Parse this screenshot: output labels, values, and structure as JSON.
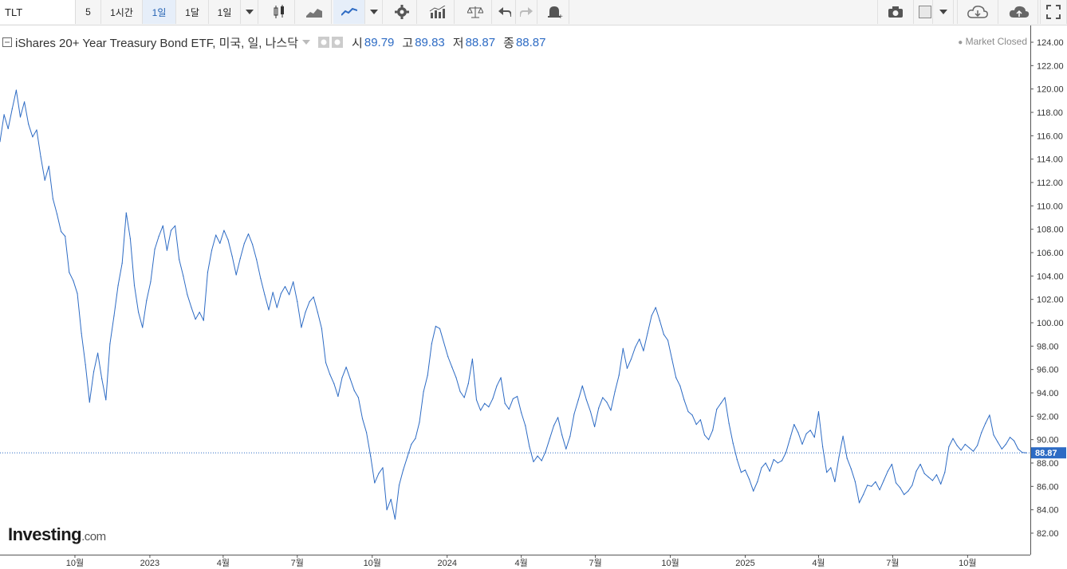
{
  "toolbar": {
    "symbol": "TLT",
    "interval_buttons": [
      "5",
      "1시간",
      "1일",
      "1달",
      "1일"
    ],
    "active_interval": "1일"
  },
  "legend": {
    "title": "iShares 20+ Year Treasury Bond ETF, 미국, 일, 나스닥",
    "open_label": "시",
    "open": "89.79",
    "high_label": "고",
    "high": "89.83",
    "low_label": "저",
    "low": "88.87",
    "close_label": "종",
    "close": "88.87"
  },
  "market_status": "Market Closed",
  "logo": {
    "main": "Investing",
    "suffix": ".com"
  },
  "colors": {
    "line": "#2d6bc4",
    "last_price_tag": "#2d6bc4",
    "grid": "none"
  },
  "chart_data": {
    "type": "line",
    "title": "iShares 20+ Year Treasury Bond ETF, 미국, 일, 나스닥",
    "xlabel": "",
    "ylabel": "",
    "ylim": [
      81,
      125
    ],
    "y_ticks": [
      "82.00",
      "84.00",
      "86.00",
      "88.00",
      "90.00",
      "92.00",
      "94.00",
      "96.00",
      "98.00",
      "100.00",
      "102.00",
      "104.00",
      "106.00",
      "108.00",
      "110.00",
      "112.00",
      "114.00",
      "116.00",
      "118.00",
      "120.00",
      "122.00",
      "124.00"
    ],
    "x_ticks": [
      "10월",
      "2023",
      "4월",
      "7월",
      "10월",
      "2024",
      "4월",
      "7월",
      "10월",
      "2025",
      "4월",
      "7월",
      "10월"
    ],
    "x_tick_dates": [
      "2022-10-01",
      "2023-01-01",
      "2023-04-01",
      "2023-07-01",
      "2023-10-01",
      "2024-01-01",
      "2024-04-01",
      "2024-07-01",
      "2024-10-01",
      "2025-01-01",
      "2025-04-01",
      "2025-07-01",
      "2025-10-01"
    ],
    "x_range": [
      "2022-07-01",
      "2025-12-17"
    ],
    "last_price": 88.87,
    "last_price_label": "88.87",
    "series": [
      {
        "points": [
          [
            "2022-07-01",
            115.5
          ],
          [
            "2022-07-06",
            117.8
          ],
          [
            "2022-07-11",
            116.6
          ],
          [
            "2022-07-16",
            118.3
          ],
          [
            "2022-07-21",
            119.9
          ],
          [
            "2022-07-26",
            117.6
          ],
          [
            "2022-07-31",
            118.9
          ],
          [
            "2022-08-05",
            117.0
          ],
          [
            "2022-08-10",
            115.9
          ],
          [
            "2022-08-15",
            116.5
          ],
          [
            "2022-08-20",
            114.2
          ],
          [
            "2022-08-25",
            112.2
          ],
          [
            "2022-08-30",
            113.4
          ],
          [
            "2022-09-04",
            110.6
          ],
          [
            "2022-09-09",
            109.3
          ],
          [
            "2022-09-14",
            107.8
          ],
          [
            "2022-09-19",
            107.4
          ],
          [
            "2022-09-24",
            104.3
          ],
          [
            "2022-09-29",
            103.6
          ],
          [
            "2022-10-04",
            102.5
          ],
          [
            "2022-10-09",
            99.1
          ],
          [
            "2022-10-14",
            96.4
          ],
          [
            "2022-10-19",
            93.2
          ],
          [
            "2022-10-24",
            95.8
          ],
          [
            "2022-10-29",
            97.4
          ],
          [
            "2022-11-03",
            95.2
          ],
          [
            "2022-11-08",
            93.4
          ],
          [
            "2022-11-13",
            98.2
          ],
          [
            "2022-11-18",
            100.6
          ],
          [
            "2022-11-23",
            103.2
          ],
          [
            "2022-11-28",
            105.1
          ],
          [
            "2022-12-03",
            109.4
          ],
          [
            "2022-12-08",
            107.2
          ],
          [
            "2022-12-13",
            103.2
          ],
          [
            "2022-12-18",
            100.9
          ],
          [
            "2022-12-23",
            99.6
          ],
          [
            "2022-12-28",
            101.9
          ],
          [
            "2023-01-02",
            103.5
          ],
          [
            "2023-01-07",
            106.3
          ],
          [
            "2023-01-12",
            107.4
          ],
          [
            "2023-01-17",
            108.3
          ],
          [
            "2023-01-22",
            106.2
          ],
          [
            "2023-01-27",
            107.9
          ],
          [
            "2023-02-01",
            108.3
          ],
          [
            "2023-02-06",
            105.4
          ],
          [
            "2023-02-11",
            104.0
          ],
          [
            "2023-02-16",
            102.4
          ],
          [
            "2023-02-21",
            101.3
          ],
          [
            "2023-02-26",
            100.3
          ],
          [
            "2023-03-03",
            100.9
          ],
          [
            "2023-03-08",
            100.2
          ],
          [
            "2023-03-13",
            104.3
          ],
          [
            "2023-03-18",
            106.2
          ],
          [
            "2023-03-23",
            107.5
          ],
          [
            "2023-03-28",
            106.8
          ],
          [
            "2023-04-02",
            107.9
          ],
          [
            "2023-04-07",
            107.1
          ],
          [
            "2023-04-12",
            105.7
          ],
          [
            "2023-04-17",
            104.1
          ],
          [
            "2023-04-22",
            105.5
          ],
          [
            "2023-04-27",
            106.8
          ],
          [
            "2023-05-02",
            107.6
          ],
          [
            "2023-05-07",
            106.7
          ],
          [
            "2023-05-12",
            105.4
          ],
          [
            "2023-05-17",
            103.8
          ],
          [
            "2023-05-22",
            102.4
          ],
          [
            "2023-05-27",
            101.1
          ],
          [
            "2023-06-01",
            102.6
          ],
          [
            "2023-06-06",
            101.3
          ],
          [
            "2023-06-11",
            102.5
          ],
          [
            "2023-06-16",
            103.1
          ],
          [
            "2023-06-21",
            102.4
          ],
          [
            "2023-06-26",
            103.5
          ],
          [
            "2023-07-01",
            101.8
          ],
          [
            "2023-07-06",
            99.6
          ],
          [
            "2023-07-11",
            100.9
          ],
          [
            "2023-07-16",
            101.8
          ],
          [
            "2023-07-21",
            102.2
          ],
          [
            "2023-07-26",
            100.9
          ],
          [
            "2023-07-31",
            99.5
          ],
          [
            "2023-08-05",
            96.6
          ],
          [
            "2023-08-10",
            95.6
          ],
          [
            "2023-08-15",
            94.8
          ],
          [
            "2023-08-20",
            93.7
          ],
          [
            "2023-08-25",
            95.3
          ],
          [
            "2023-08-30",
            96.2
          ],
          [
            "2023-09-04",
            95.2
          ],
          [
            "2023-09-09",
            94.2
          ],
          [
            "2023-09-14",
            93.6
          ],
          [
            "2023-09-19",
            91.8
          ],
          [
            "2023-09-24",
            90.6
          ],
          [
            "2023-09-29",
            88.6
          ],
          [
            "2023-10-04",
            86.3
          ],
          [
            "2023-10-09",
            87.1
          ],
          [
            "2023-10-14",
            87.6
          ],
          [
            "2023-10-19",
            84.0
          ],
          [
            "2023-10-24",
            84.9
          ],
          [
            "2023-10-29",
            83.2
          ],
          [
            "2023-11-03",
            86.1
          ],
          [
            "2023-11-08",
            87.4
          ],
          [
            "2023-11-13",
            88.5
          ],
          [
            "2023-11-18",
            89.6
          ],
          [
            "2023-11-23",
            90.1
          ],
          [
            "2023-11-28",
            91.5
          ],
          [
            "2023-12-03",
            94.1
          ],
          [
            "2023-12-08",
            95.5
          ],
          [
            "2023-12-13",
            98.2
          ],
          [
            "2023-12-18",
            99.7
          ],
          [
            "2023-12-23",
            99.5
          ],
          [
            "2024-01-02",
            97.1
          ],
          [
            "2024-01-07",
            96.2
          ],
          [
            "2024-01-12",
            95.3
          ],
          [
            "2024-01-17",
            94.1
          ],
          [
            "2024-01-22",
            93.6
          ],
          [
            "2024-01-27",
            94.8
          ],
          [
            "2024-02-01",
            96.9
          ],
          [
            "2024-02-06",
            93.4
          ],
          [
            "2024-02-11",
            92.5
          ],
          [
            "2024-02-16",
            93.1
          ],
          [
            "2024-02-21",
            92.8
          ],
          [
            "2024-02-26",
            93.5
          ],
          [
            "2024-03-02",
            94.6
          ],
          [
            "2024-03-07",
            95.3
          ],
          [
            "2024-03-12",
            93.1
          ],
          [
            "2024-03-17",
            92.6
          ],
          [
            "2024-03-22",
            93.5
          ],
          [
            "2024-03-27",
            93.7
          ],
          [
            "2024-04-01",
            92.3
          ],
          [
            "2024-04-06",
            91.2
          ],
          [
            "2024-04-11",
            89.4
          ],
          [
            "2024-04-16",
            88.1
          ],
          [
            "2024-04-21",
            88.6
          ],
          [
            "2024-04-26",
            88.2
          ],
          [
            "2024-05-01",
            89.0
          ],
          [
            "2024-05-06",
            90.1
          ],
          [
            "2024-05-11",
            91.2
          ],
          [
            "2024-05-16",
            91.9
          ],
          [
            "2024-05-21",
            90.4
          ],
          [
            "2024-05-26",
            89.2
          ],
          [
            "2024-05-31",
            90.3
          ],
          [
            "2024-06-05",
            92.2
          ],
          [
            "2024-06-10",
            93.4
          ],
          [
            "2024-06-15",
            94.6
          ],
          [
            "2024-06-20",
            93.4
          ],
          [
            "2024-06-25",
            92.4
          ],
          [
            "2024-06-30",
            91.1
          ],
          [
            "2024-07-05",
            92.7
          ],
          [
            "2024-07-10",
            93.6
          ],
          [
            "2024-07-15",
            93.2
          ],
          [
            "2024-07-20",
            92.5
          ],
          [
            "2024-07-25",
            94.1
          ],
          [
            "2024-07-30",
            95.5
          ],
          [
            "2024-08-04",
            97.8
          ],
          [
            "2024-08-09",
            96.1
          ],
          [
            "2024-08-14",
            96.9
          ],
          [
            "2024-08-19",
            97.9
          ],
          [
            "2024-08-24",
            98.6
          ],
          [
            "2024-08-29",
            97.6
          ],
          [
            "2024-09-03",
            99.1
          ],
          [
            "2024-09-08",
            100.6
          ],
          [
            "2024-09-13",
            101.3
          ],
          [
            "2024-09-18",
            100.2
          ],
          [
            "2024-09-23",
            99.0
          ],
          [
            "2024-09-28",
            98.5
          ],
          [
            "2024-10-03",
            96.9
          ],
          [
            "2024-10-08",
            95.3
          ],
          [
            "2024-10-13",
            94.6
          ],
          [
            "2024-10-18",
            93.4
          ],
          [
            "2024-10-23",
            92.4
          ],
          [
            "2024-10-28",
            92.1
          ],
          [
            "2024-11-02",
            91.3
          ],
          [
            "2024-11-07",
            91.7
          ],
          [
            "2024-11-12",
            90.4
          ],
          [
            "2024-11-17",
            90.0
          ],
          [
            "2024-11-22",
            90.8
          ],
          [
            "2024-11-27",
            92.6
          ],
          [
            "2024-12-02",
            93.1
          ],
          [
            "2024-12-07",
            93.6
          ],
          [
            "2024-12-12",
            91.4
          ],
          [
            "2024-12-17",
            89.7
          ],
          [
            "2024-12-22",
            88.3
          ],
          [
            "2024-12-27",
            87.2
          ],
          [
            "2025-01-01",
            87.4
          ],
          [
            "2025-01-06",
            86.6
          ],
          [
            "2025-01-11",
            85.6
          ],
          [
            "2025-01-16",
            86.4
          ],
          [
            "2025-01-21",
            87.6
          ],
          [
            "2025-01-26",
            88.0
          ],
          [
            "2025-01-31",
            87.3
          ],
          [
            "2025-02-05",
            88.3
          ],
          [
            "2025-02-10",
            88.0
          ],
          [
            "2025-02-15",
            88.2
          ],
          [
            "2025-02-20",
            88.9
          ],
          [
            "2025-02-25",
            90.1
          ],
          [
            "2025-03-02",
            91.3
          ],
          [
            "2025-03-07",
            90.6
          ],
          [
            "2025-03-12",
            89.6
          ],
          [
            "2025-03-17",
            90.5
          ],
          [
            "2025-03-22",
            90.8
          ],
          [
            "2025-03-27",
            90.2
          ],
          [
            "2025-04-01",
            92.4
          ],
          [
            "2025-04-06",
            89.4
          ],
          [
            "2025-04-11",
            87.2
          ],
          [
            "2025-04-16",
            87.6
          ],
          [
            "2025-04-21",
            86.4
          ],
          [
            "2025-04-26",
            88.5
          ],
          [
            "2025-05-01",
            90.3
          ],
          [
            "2025-05-06",
            88.4
          ],
          [
            "2025-05-11",
            87.5
          ],
          [
            "2025-05-16",
            86.4
          ],
          [
            "2025-05-21",
            84.6
          ],
          [
            "2025-05-26",
            85.3
          ],
          [
            "2025-05-31",
            86.1
          ],
          [
            "2025-06-05",
            86.0
          ],
          [
            "2025-06-10",
            86.4
          ],
          [
            "2025-06-15",
            85.7
          ],
          [
            "2025-06-20",
            86.5
          ],
          [
            "2025-06-25",
            87.3
          ],
          [
            "2025-06-30",
            87.9
          ],
          [
            "2025-07-05",
            86.3
          ],
          [
            "2025-07-10",
            85.9
          ],
          [
            "2025-07-15",
            85.3
          ],
          [
            "2025-07-20",
            85.6
          ],
          [
            "2025-07-25",
            86.1
          ],
          [
            "2025-07-30",
            87.3
          ],
          [
            "2025-08-04",
            87.9
          ],
          [
            "2025-08-09",
            87.1
          ],
          [
            "2025-08-14",
            86.8
          ],
          [
            "2025-08-19",
            86.5
          ],
          [
            "2025-08-24",
            87.0
          ],
          [
            "2025-08-29",
            86.2
          ],
          [
            "2025-09-03",
            87.2
          ],
          [
            "2025-09-08",
            89.4
          ],
          [
            "2025-09-13",
            90.1
          ],
          [
            "2025-09-18",
            89.5
          ],
          [
            "2025-09-23",
            89.1
          ],
          [
            "2025-09-28",
            89.6
          ],
          [
            "2025-10-03",
            89.3
          ],
          [
            "2025-10-08",
            89.0
          ],
          [
            "2025-10-13",
            89.5
          ],
          [
            "2025-10-18",
            90.6
          ],
          [
            "2025-10-23",
            91.4
          ],
          [
            "2025-10-28",
            92.1
          ],
          [
            "2025-11-02",
            90.4
          ],
          [
            "2025-11-07",
            89.8
          ],
          [
            "2025-11-12",
            89.2
          ],
          [
            "2025-11-17",
            89.6
          ],
          [
            "2025-11-22",
            90.2
          ],
          [
            "2025-11-27",
            89.9
          ],
          [
            "2025-12-02",
            89.2
          ],
          [
            "2025-12-07",
            88.9
          ],
          [
            "2025-12-12",
            88.87
          ]
        ]
      }
    ]
  }
}
